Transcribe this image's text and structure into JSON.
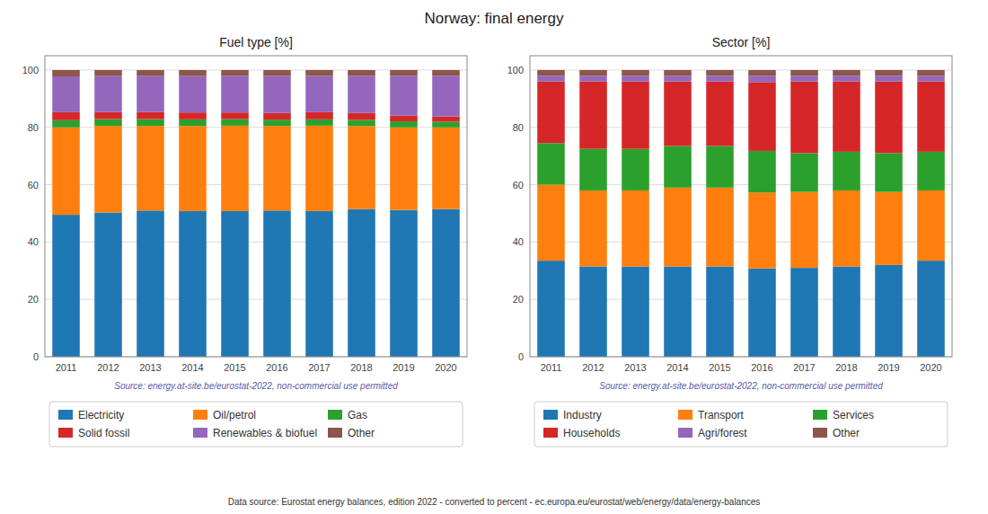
{
  "title": "Norway: final energy",
  "annotations": [
    "Data source: Eurostat energy balances, edition 2022 - converted to percent - ec.europa.eu/eurostat/web/energy/data/energy-balances"
  ],
  "chart_data": [
    {
      "type": "bar",
      "stacked": true,
      "title": "Fuel type [%]",
      "categories": [
        "2011",
        "2012",
        "2013",
        "2014",
        "2015",
        "2016",
        "2017",
        "2018",
        "2019",
        "2020"
      ],
      "series": [
        {
          "name": "Electricity",
          "color": "#1f77b4",
          "values": [
            49.5,
            50.3,
            51.0,
            50.8,
            50.8,
            51.0,
            50.8,
            51.5,
            51.2,
            51.5
          ]
        },
        {
          "name": "Oil/petrol",
          "color": "#ff7f0e",
          "values": [
            30.5,
            30.2,
            29.5,
            29.7,
            29.8,
            29.5,
            29.8,
            29.0,
            28.8,
            28.5
          ]
        },
        {
          "name": "Gas",
          "color": "#2ca02c",
          "values": [
            2.5,
            2.4,
            2.4,
            2.3,
            2.3,
            2.2,
            2.2,
            2.1,
            2.1,
            2.0
          ]
        },
        {
          "name": "Solid fossil",
          "color": "#d62728",
          "values": [
            2.8,
            2.5,
            2.5,
            2.4,
            2.3,
            2.3,
            2.5,
            2.4,
            2.0,
            1.8
          ]
        },
        {
          "name": "Renewables & biofuel",
          "color": "#9467bd",
          "values": [
            12.5,
            12.5,
            12.5,
            12.7,
            12.8,
            13.0,
            12.7,
            13.0,
            13.9,
            14.2
          ]
        },
        {
          "name": "Other",
          "color": "#8c564b",
          "values": [
            2.2,
            2.1,
            2.1,
            2.1,
            2.0,
            2.0,
            2.0,
            2.0,
            2.0,
            2.0
          ]
        }
      ],
      "ylim": [
        0,
        105
      ],
      "yticks": [
        0,
        20,
        40,
        60,
        80,
        100
      ],
      "grid": true,
      "legend": "bottom",
      "annotations": [
        "Source: energy.at-site.be/eurostat-2022, non-commercial use permitted"
      ]
    },
    {
      "type": "bar",
      "stacked": true,
      "title": "Sector [%]",
      "categories": [
        "2011",
        "2012",
        "2013",
        "2014",
        "2015",
        "2016",
        "2017",
        "2018",
        "2019",
        "2020"
      ],
      "series": [
        {
          "name": "Industry",
          "color": "#1f77b4",
          "values": [
            33.5,
            31.5,
            31.5,
            31.5,
            31.5,
            30.8,
            31.0,
            31.5,
            32.0,
            33.5
          ]
        },
        {
          "name": "Transport",
          "color": "#ff7f0e",
          "values": [
            26.5,
            26.5,
            26.5,
            27.5,
            27.5,
            26.5,
            26.5,
            26.5,
            25.5,
            24.5
          ]
        },
        {
          "name": "Services",
          "color": "#2ca02c",
          "values": [
            14.5,
            14.5,
            14.5,
            14.5,
            14.5,
            14.5,
            13.5,
            13.5,
            13.5,
            13.5
          ]
        },
        {
          "name": "Households",
          "color": "#d62728",
          "values": [
            21.5,
            23.5,
            23.5,
            22.5,
            22.5,
            24.0,
            25.0,
            24.5,
            25.0,
            24.5
          ]
        },
        {
          "name": "Agri/forest",
          "color": "#9467bd",
          "values": [
            2.0,
            2.0,
            2.0,
            2.0,
            2.0,
            2.2,
            2.0,
            2.0,
            2.0,
            2.0
          ]
        },
        {
          "name": "Other",
          "color": "#8c564b",
          "values": [
            2.0,
            2.0,
            2.0,
            2.0,
            2.0,
            2.0,
            2.0,
            2.0,
            2.0,
            2.0
          ]
        }
      ],
      "ylim": [
        0,
        105
      ],
      "yticks": [
        0,
        20,
        40,
        60,
        80,
        100
      ],
      "grid": true,
      "legend": "bottom",
      "annotations": [
        "Source: energy.at-site.be/eurostat-2022, non-commercial use permitted"
      ]
    }
  ]
}
